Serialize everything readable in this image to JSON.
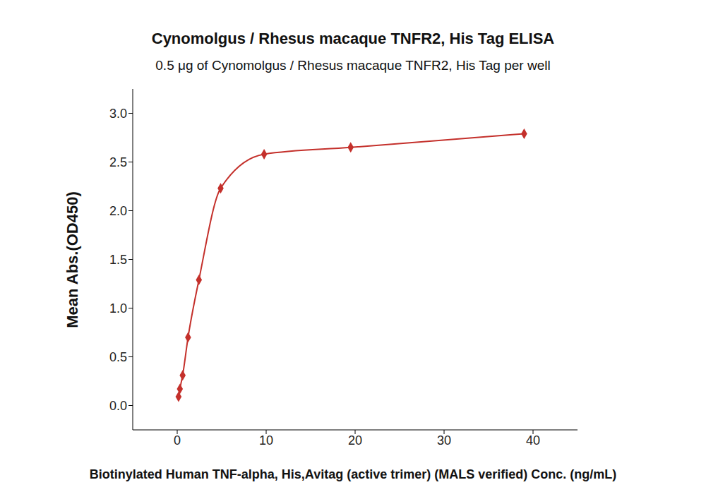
{
  "chart_data": {
    "type": "scatter",
    "title": "Cynomolgus / Rhesus macaque TNFR2, His Tag ELISA",
    "subtitle": "0.5 μg of Cynomolgus / Rhesus macaque TNFR2, His Tag per well",
    "x_label": "Biotinylated Human TNF-alpha, His,Avitag (active trimer) (MALS verified) Conc. (ng/mL)",
    "y_label": "Mean Abs.(OD450)",
    "x": [
      0.15,
      0.3,
      0.61,
      1.22,
      2.44,
      4.88,
      9.77,
      19.5,
      39
    ],
    "values": [
      0.09,
      0.17,
      0.31,
      0.7,
      1.29,
      2.23,
      2.58,
      2.65,
      2.79
    ],
    "color": "#c4302b",
    "marker": "diamond",
    "line_style": "solid",
    "xlim": [
      -5,
      45
    ],
    "xticks": [
      0,
      10,
      20,
      30,
      40
    ],
    "ylim": [
      -0.25,
      3.25
    ],
    "yticks": [
      {
        "value": 0,
        "label": "0.0"
      },
      {
        "value": 0.5,
        "label": "0.5"
      },
      {
        "value": 1,
        "label": "1.0"
      },
      {
        "value": 1.5,
        "label": "1.5"
      },
      {
        "value": 2,
        "label": "2.0"
      },
      {
        "value": 2.5,
        "label": "2.5"
      },
      {
        "value": 3,
        "label": "3.0"
      }
    ],
    "grid": false
  }
}
